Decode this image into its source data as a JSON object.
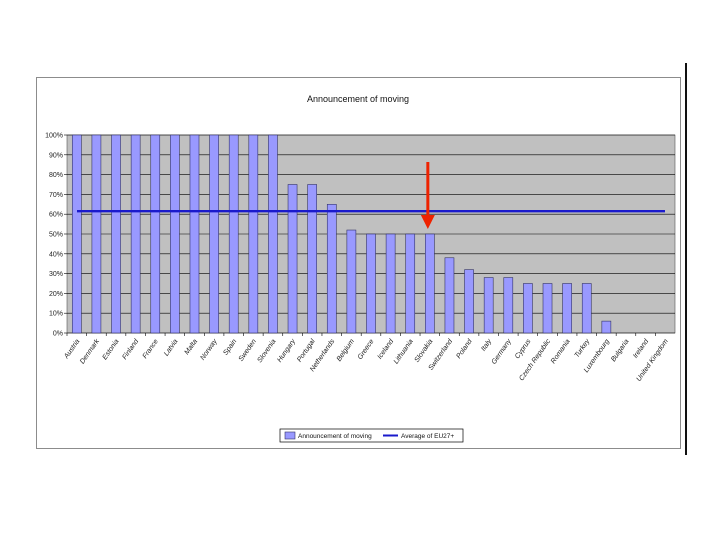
{
  "chart_data": {
    "type": "bar",
    "title": "Announcement of moving",
    "categories": [
      "Austria",
      "Denmark",
      "Estonia",
      "Finland",
      "France",
      "Latvia",
      "Malta",
      "Norway",
      "Spain",
      "Sweden",
      "Slovenia",
      "Hungary",
      "Portugal",
      "Netherlands",
      "Belgium",
      "Greece",
      "Iceland",
      "Lithuania",
      "Slovakia",
      "Switzerland",
      "Poland",
      "Italy",
      "Germany",
      "Cyprus",
      "Czech Republic",
      "Romania",
      "Turkey",
      "Luxembourg",
      "Bulgaria",
      "Ireland",
      "United Kingdom"
    ],
    "series": [
      {
        "name": "Announcement of moving",
        "values": [
          100,
          100,
          100,
          100,
          100,
          100,
          100,
          100,
          100,
          100,
          100,
          75,
          75,
          65,
          52,
          50,
          50,
          50,
          50,
          38,
          32,
          28,
          28,
          25,
          25,
          25,
          25,
          6,
          0,
          0,
          0
        ]
      }
    ],
    "average": {
      "name": "Average of EU27+",
      "value": 61.5
    },
    "ylim": [
      0,
      100
    ],
    "yticks": [
      "0%",
      "10%",
      "20%",
      "30%",
      "40%",
      "50%",
      "60%",
      "70%",
      "80%",
      "90%",
      "100%"
    ],
    "grid": true,
    "legend_position": "bottom",
    "highlight": {
      "category": "Slovakia",
      "marker": "arrow"
    },
    "colors": {
      "bar_fill": "#9999ff",
      "bar_stroke": "#333366",
      "plot_background": "#c0c0c0",
      "average_line": "#1a1acc",
      "arrow": "#ee2200",
      "gridline": "#000000"
    }
  }
}
